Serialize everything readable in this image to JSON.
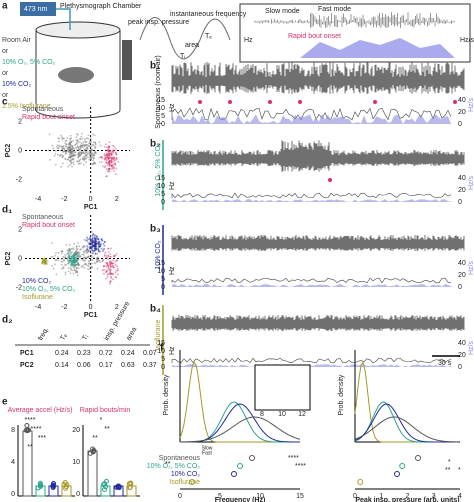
{
  "panel_a": {
    "label": "a",
    "laser": "473 nm",
    "chamber": "Plethysmograph Chamber",
    "gases": [
      "Room Air",
      "or",
      "10% O₂, 5% CO₂",
      "or",
      "10% CO₂",
      "or",
      "1.5% Isoflurane"
    ],
    "schematic": {
      "peak": "peak insp. pressure",
      "freq": "instantaneous frequency",
      "area": "area",
      "te": "Tₑ",
      "ti": "Tᵢ"
    },
    "inset": {
      "slow": "Slow mode",
      "fast": "Fast mode",
      "onset": "Rapid bout onset",
      "left_unit": "Hz",
      "right_unit": "Hz/s"
    }
  },
  "panel_b": [
    {
      "label": "b₁",
      "condition": "Spontaneous (room air)"
    },
    {
      "label": "b₂",
      "condition": "10% O₂, 5% CO₂"
    },
    {
      "label": "b₃",
      "condition": "10% CO₂"
    },
    {
      "label": "b₄",
      "condition": "Isoflurane",
      "scalebar": "30 s"
    }
  ],
  "b_axes": {
    "left_unit": "Hz",
    "right_unit": "Hz/s",
    "left_ticks": [
      "15",
      "10",
      "5",
      "0"
    ],
    "right_ticks": [
      "40",
      "20",
      "0"
    ]
  },
  "panel_c": {
    "label": "c",
    "legend": [
      "Spontaneous",
      "Rapid bout onset"
    ],
    "xlabel": "PC1",
    "ylabel": "PC2",
    "xticks": [
      "-4",
      "-2",
      "0",
      "2"
    ],
    "yticks": [
      "2",
      "0",
      "-2"
    ]
  },
  "panel_d1": {
    "label": "d₁",
    "legend": [
      "Spontaneous",
      "Rapid bout onset",
      "10% CO₂",
      "10% O₂, 5% CO₂",
      "Isoflurane"
    ],
    "xlabel": "PC1",
    "ylabel": "PC2",
    "xticks": [
      "-4",
      "-2",
      "0",
      "2"
    ],
    "yticks": [
      "2",
      "0",
      "-2"
    ]
  },
  "panel_d2": {
    "label": "d₂",
    "columns": [
      "freq.",
      "Tₑ",
      "Tᵢ",
      "insp. pressure",
      "area"
    ],
    "rows": [
      [
        "PC1",
        "0.24",
        "0.23",
        "0.72",
        "0.24",
        "0.07"
      ],
      [
        "PC2",
        "0.14",
        "0.06",
        "0.17",
        "0.63",
        "0.37"
      ]
    ]
  },
  "panel_e": {
    "label": "e",
    "titles": [
      "Average accel (Hz/s)",
      "Rapid bouts/min"
    ],
    "left_ticks": [
      "8",
      "4",
      "0"
    ],
    "right_ticks": [
      "20",
      "10",
      "0"
    ],
    "stars": [
      "****",
      "****",
      "***",
      "**",
      "*",
      "**",
      "**"
    ]
  },
  "panel_f": {
    "label": "f",
    "ylabel": "Prob. density",
    "xlabel_left": "Frequency (Hz)",
    "xlabel_right": "Peak insp. pressure (arb. units)",
    "xticks_left": [
      "0",
      "5",
      "10",
      "15"
    ],
    "inset_ticks": [
      "8",
      "10",
      "12"
    ],
    "xticks_right": [
      "0",
      "1",
      "2",
      "3",
      "4"
    ],
    "legend": [
      "Spontaneous",
      "10% O₂, 5% CO₂",
      "10% CO₂",
      "Isoflurane"
    ],
    "modes": [
      "Slow",
      "Fast"
    ],
    "stars": [
      "**",
      "****",
      "****",
      "**",
      "*",
      "*"
    ]
  }
}
